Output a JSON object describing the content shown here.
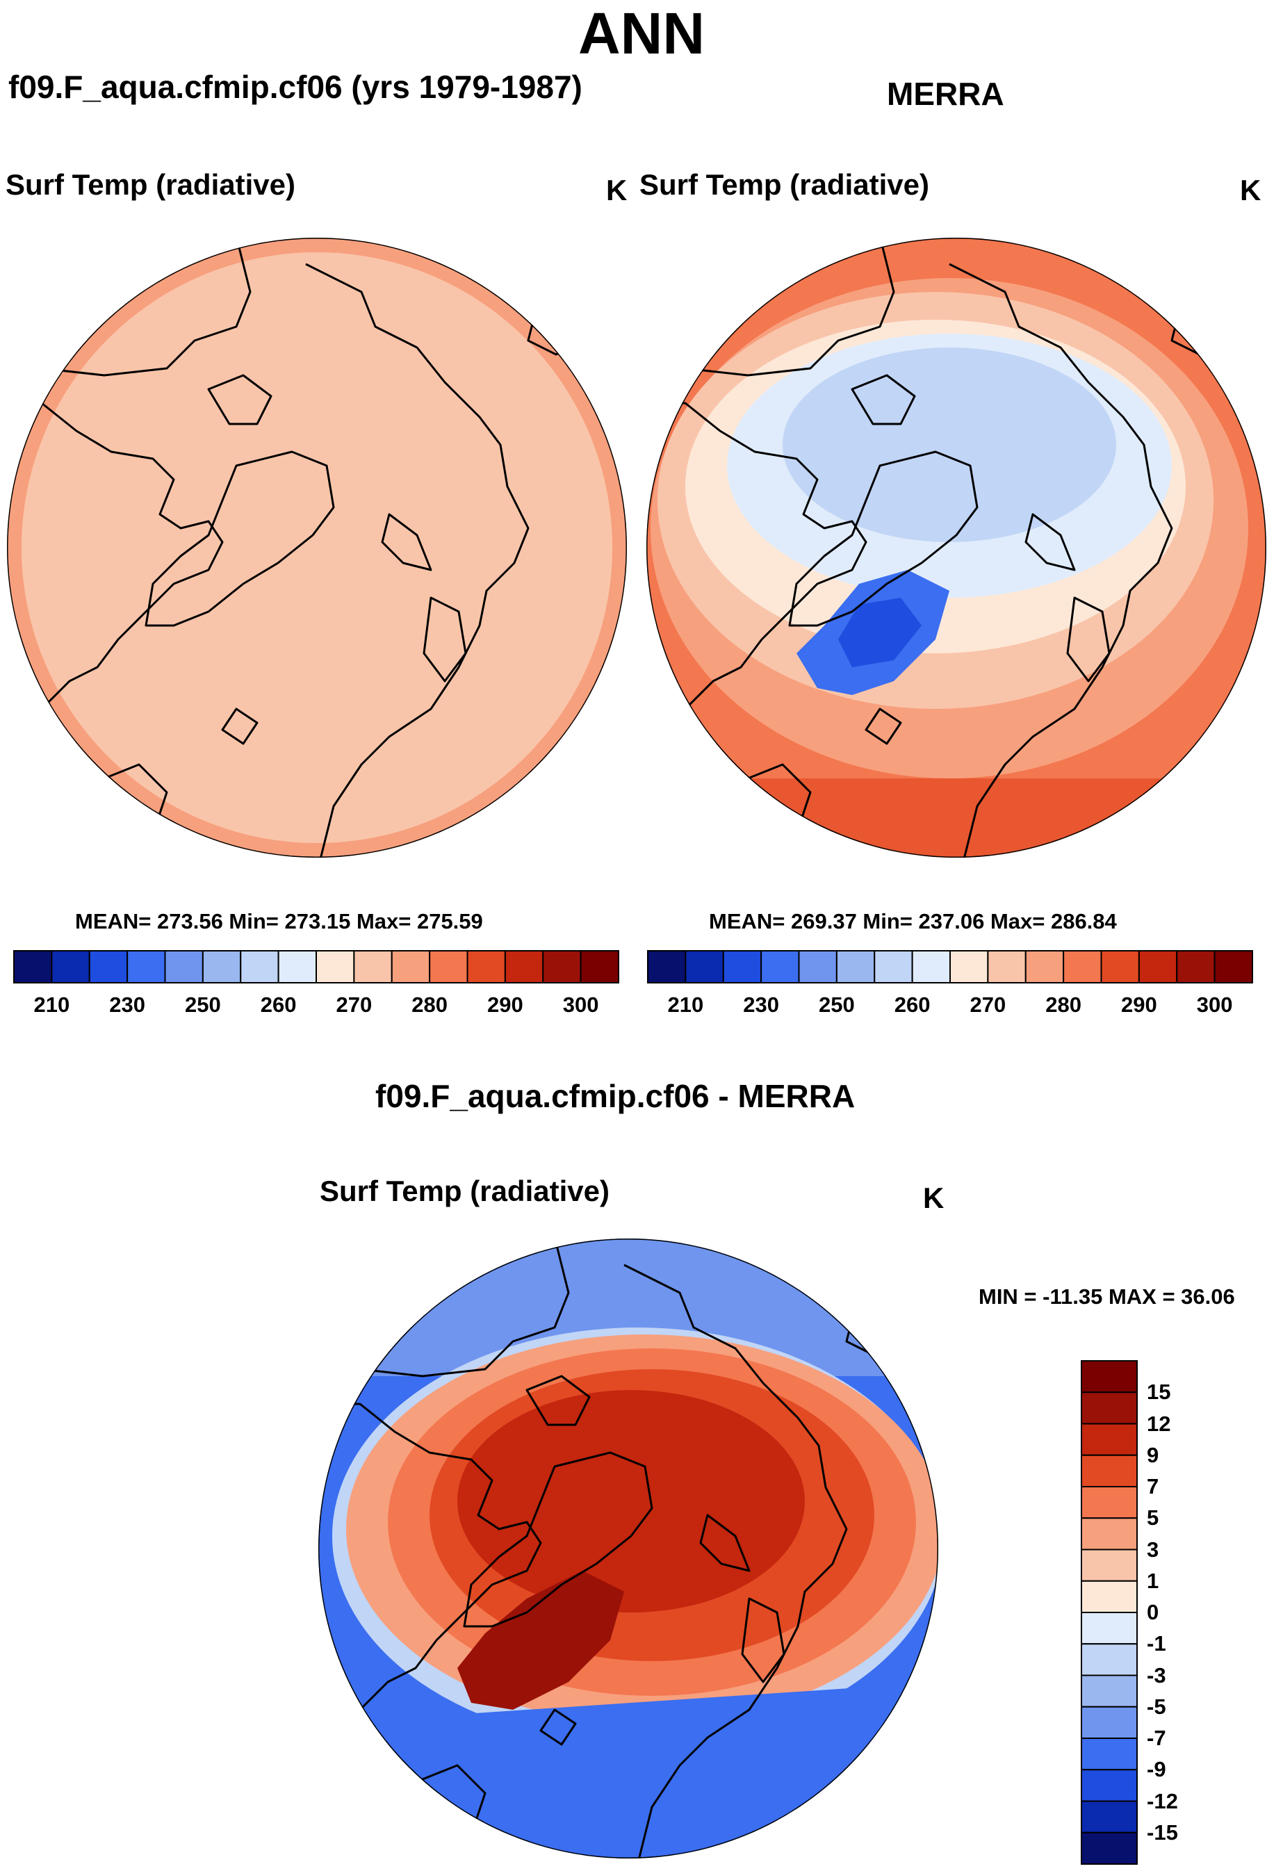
{
  "title": "ANN",
  "colors": {
    "abs": [
      "#08106e",
      "#0a2ab0",
      "#1e4de0",
      "#3b6ef0",
      "#6f95ee",
      "#9ab7f0",
      "#c1d5f6",
      "#e0ecfb",
      "#fde8d8",
      "#f9c5aa",
      "#f7a07e",
      "#f3774f",
      "#e24a23",
      "#c4260e",
      "#9a1107",
      "#7a0000"
    ],
    "diff": [
      "#08106e",
      "#0a2ab0",
      "#1e4de0",
      "#3b6ef0",
      "#6f95ee",
      "#9ab7f0",
      "#c1d5f6",
      "#e0ecfb",
      "#fde8d8",
      "#f9c5aa",
      "#f7a07e",
      "#f3774f",
      "#e24a23",
      "#c4260e",
      "#9a1107",
      "#7a0000"
    ]
  },
  "panels": {
    "model": {
      "case": "f09.F_aqua.cfmip.cf06 (yrs 1979-1987)",
      "variable": "Surf Temp (radiative)",
      "units": "K",
      "stats": "MEAN= 273.56  Min= 273.15  Max= 275.59"
    },
    "obs": {
      "case": "MERRA",
      "variable": "Surf Temp (radiative)",
      "units": "K",
      "stats": "MEAN= 269.37  Min= 237.06  Max= 286.84"
    },
    "diff": {
      "case": "f09.F_aqua.cfmip.cf06 - MERRA",
      "variable": "Surf Temp (radiative)",
      "units": "K",
      "stats": "MIN = -11.35 MAX =  36.06"
    }
  },
  "chart_data": [
    {
      "type": "heatmap",
      "projection": "north polar stereographic",
      "title": "f09.F_aqua.cfmip.cf06 (yrs 1979-1987)",
      "variable": "Surf Temp (radiative)",
      "units": "K",
      "mean": 273.56,
      "min": 273.15,
      "max": 275.59,
      "colorbar_levels": [
        210,
        230,
        250,
        260,
        270,
        280,
        290,
        300
      ],
      "colorbar_labels": [
        "210",
        "230",
        "250",
        "260",
        "270",
        "280",
        "290",
        "300"
      ],
      "colorbar_orientation": "horizontal"
    },
    {
      "type": "heatmap",
      "projection": "north polar stereographic",
      "title": "MERRA",
      "variable": "Surf Temp (radiative)",
      "units": "K",
      "mean": 269.37,
      "min": 237.06,
      "max": 286.84,
      "colorbar_levels": [
        210,
        230,
        250,
        260,
        270,
        280,
        290,
        300
      ],
      "colorbar_labels": [
        "210",
        "230",
        "250",
        "260",
        "270",
        "280",
        "290",
        "300"
      ],
      "colorbar_orientation": "horizontal"
    },
    {
      "type": "heatmap",
      "projection": "north polar stereographic",
      "title": "f09.F_aqua.cfmip.cf06 - MERRA",
      "variable": "Surf Temp (radiative)",
      "units": "K",
      "min": -11.35,
      "max": 36.06,
      "colorbar_levels": [
        15,
        12,
        9,
        7,
        5,
        3,
        1,
        0,
        -1,
        -3,
        -5,
        -7,
        -9,
        -12,
        -15
      ],
      "colorbar_labels": [
        "15",
        "12",
        "9",
        "7",
        "5",
        "3",
        "1",
        "0",
        "-1",
        "-3",
        "-5",
        "-7",
        "-9",
        "-12",
        "-15"
      ],
      "colorbar_orientation": "vertical"
    }
  ]
}
